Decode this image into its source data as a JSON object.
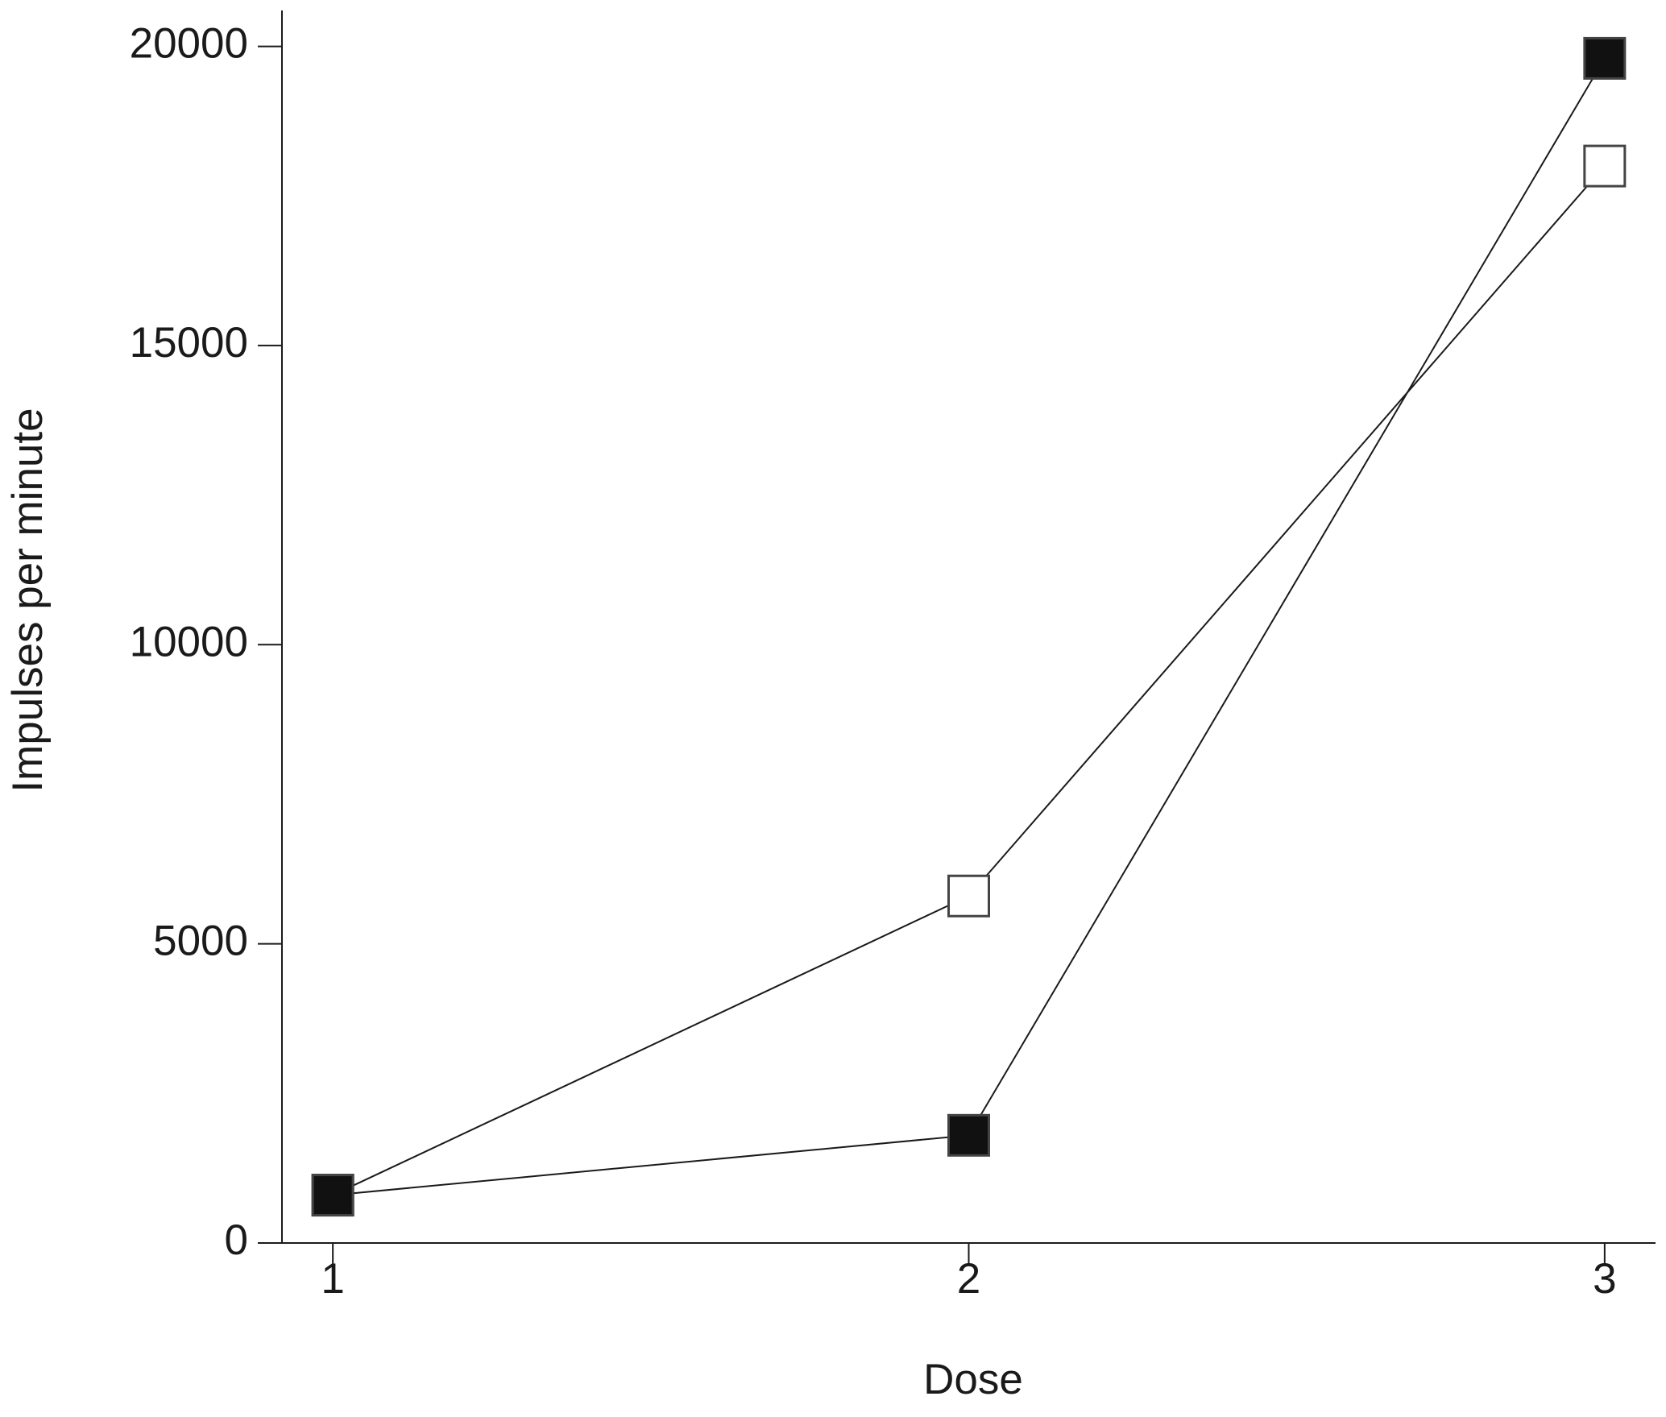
{
  "chart_data": {
    "type": "line",
    "x_label": "Dose",
    "y_label": "Impulses per minute",
    "x": [
      1,
      2,
      3
    ],
    "series": [
      {
        "color": "#1a1a1a",
        "marker_fill": "#ffffff",
        "values": [
          800,
          5800,
          18000
        ]
      },
      {
        "color": "#1a1a1a",
        "marker_fill": "#111111",
        "values": [
          800,
          1800,
          19800
        ]
      }
    ],
    "xlim": [
      0.92,
      3.08
    ],
    "xticks": [
      1,
      2,
      3
    ],
    "ylim": [
      0,
      20600
    ],
    "yticks": [
      0,
      5000,
      10000,
      15000,
      20000
    ],
    "grid": false
  }
}
